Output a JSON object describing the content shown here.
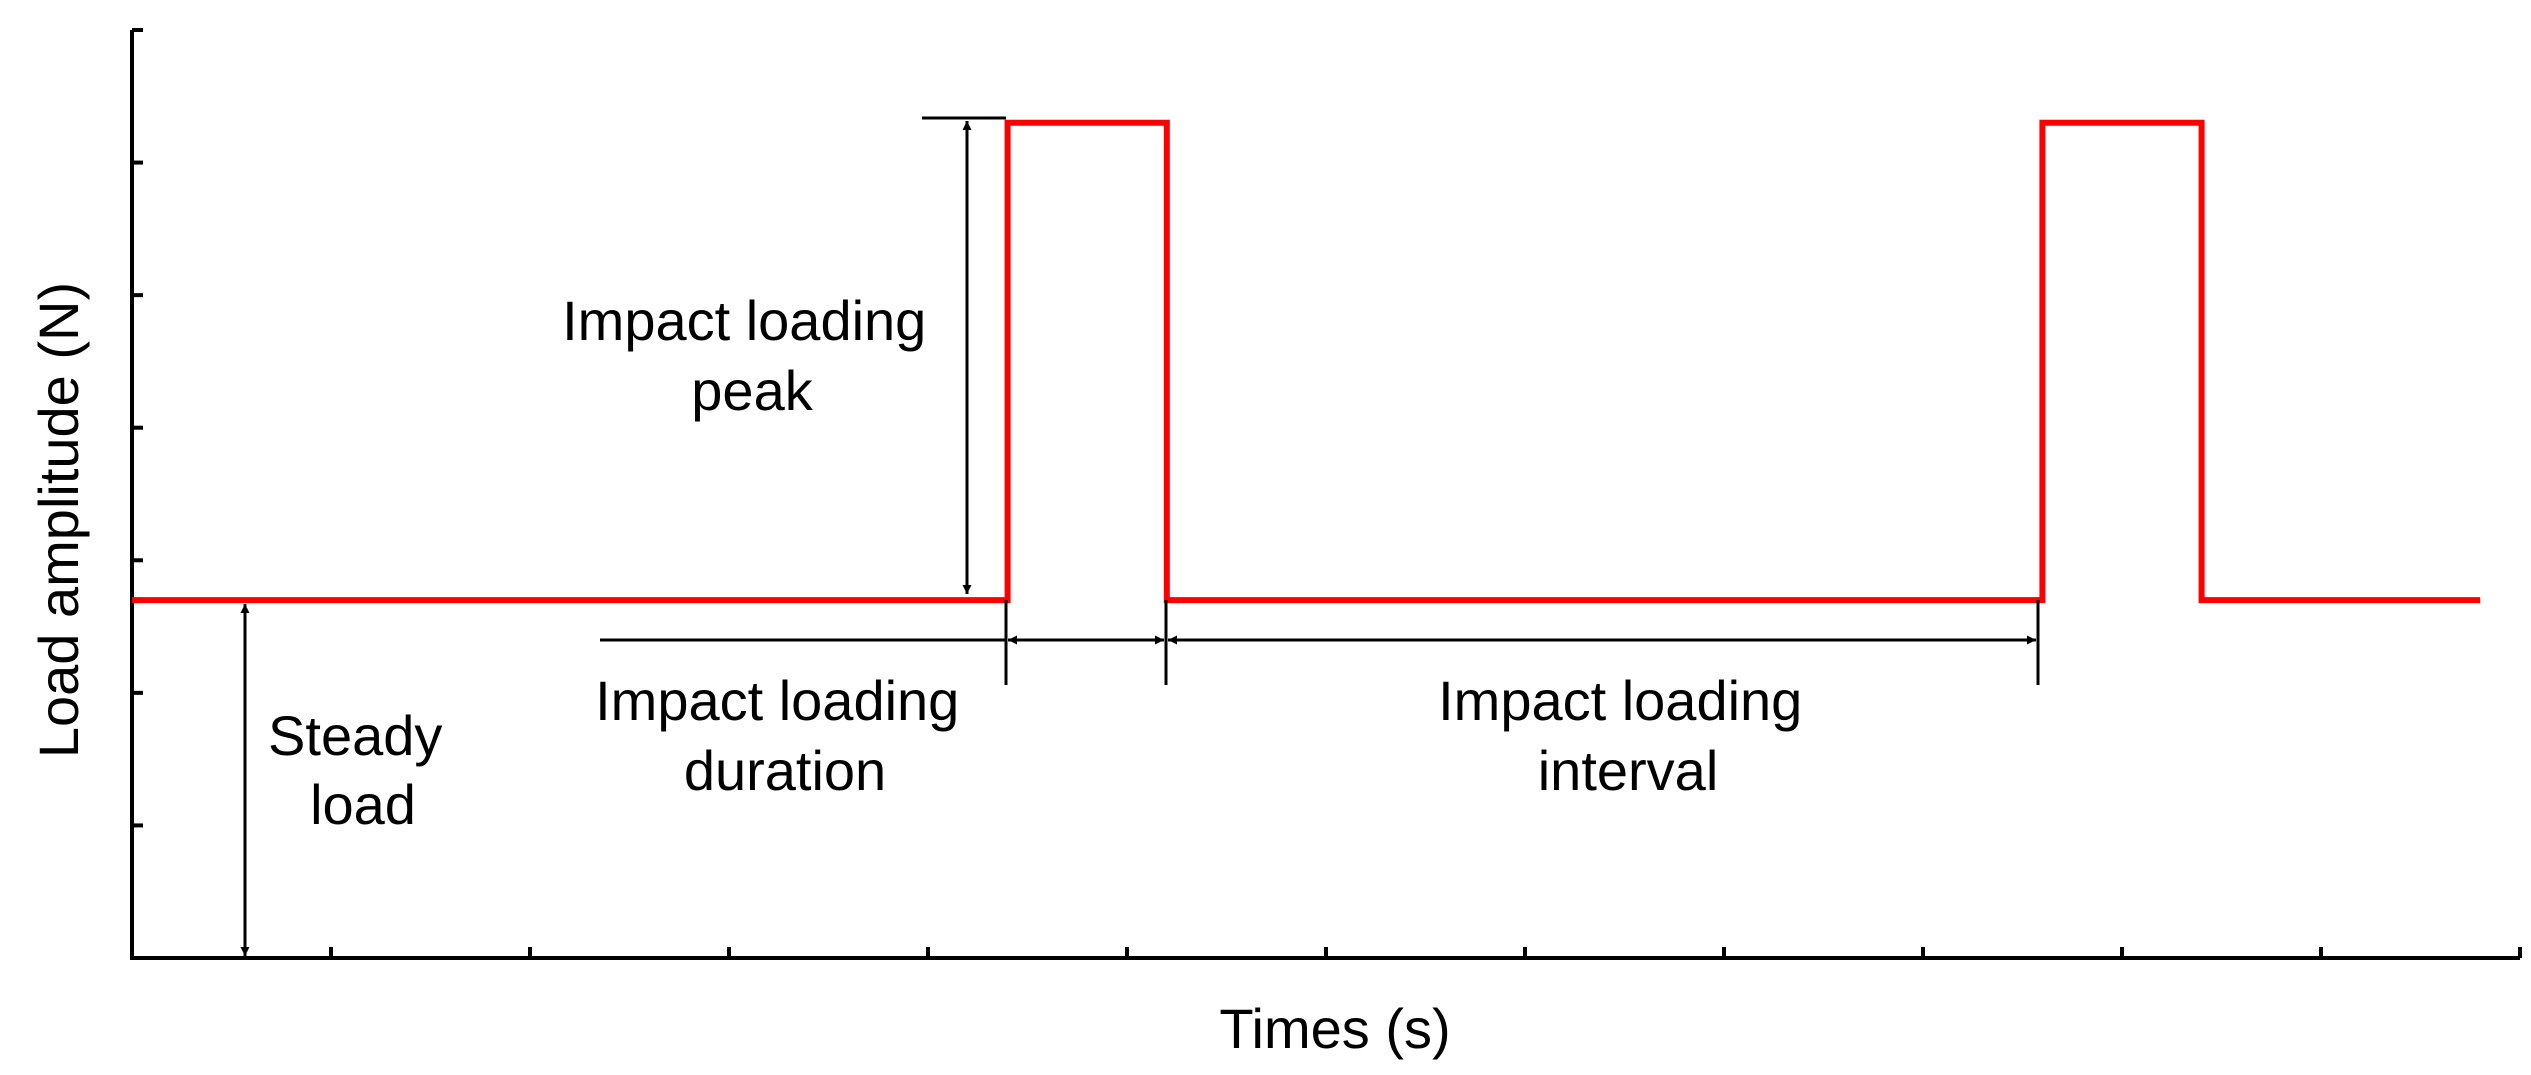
{
  "chart_data": {
    "type": "line",
    "title": "",
    "xlabel": "Times (s)",
    "ylabel": "Load amplitude (N)",
    "xlim": [
      0,
      12
    ],
    "ylim": [
      0,
      7
    ],
    "xticks": [
      1,
      2,
      3,
      4,
      5,
      6,
      7,
      8,
      9,
      10,
      11,
      12
    ],
    "yticks": [
      1,
      2,
      3,
      4,
      5,
      6,
      7
    ],
    "tick_labels_shown": false,
    "series": [
      {
        "name": "Load",
        "color": "#ff0000",
        "x": [
          0,
          4.4,
          4.4,
          5.2,
          5.2,
          9.6,
          9.6,
          10.4,
          10.4,
          11.8
        ],
        "y": [
          2.7,
          2.7,
          6.3,
          6.3,
          2.7,
          2.7,
          6.3,
          6.3,
          2.7,
          2.7
        ]
      }
    ],
    "annotations": {
      "steady_load": {
        "lines": [
          "Steady",
          "load"
        ]
      },
      "impact_peak": {
        "lines": [
          "Impact loading",
          "peak"
        ]
      },
      "impact_duration": {
        "lines": [
          "Impact loading",
          "duration"
        ]
      },
      "impact_interval": {
        "lines": [
          "Impact loading",
          "interval"
        ]
      }
    }
  },
  "colors": {
    "axis": "#000000",
    "series": "#ff0000"
  }
}
